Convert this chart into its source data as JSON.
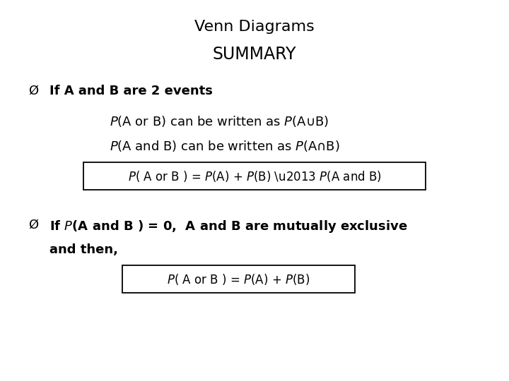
{
  "title": "Venn Diagrams",
  "subtitle": "SUMMARY",
  "background_color": "#ffffff",
  "text_color": "#000000",
  "font_size_title": 16,
  "font_size_subtitle": 17,
  "font_size_body": 13,
  "font_size_box": 12,
  "bullet": "Ø",
  "line1_bullet": "If A and B are 2 events",
  "line2": "can be written as",
  "line3": "can be written as",
  "box1": "P( A or B ) = P(A) + P(B) – P(A and B)",
  "line4a": "If P(A and B ) = 0,  A and B are mutually exclusive",
  "line4b": "and then,",
  "box2": "P( A or B ) = P(A) + P(B)"
}
